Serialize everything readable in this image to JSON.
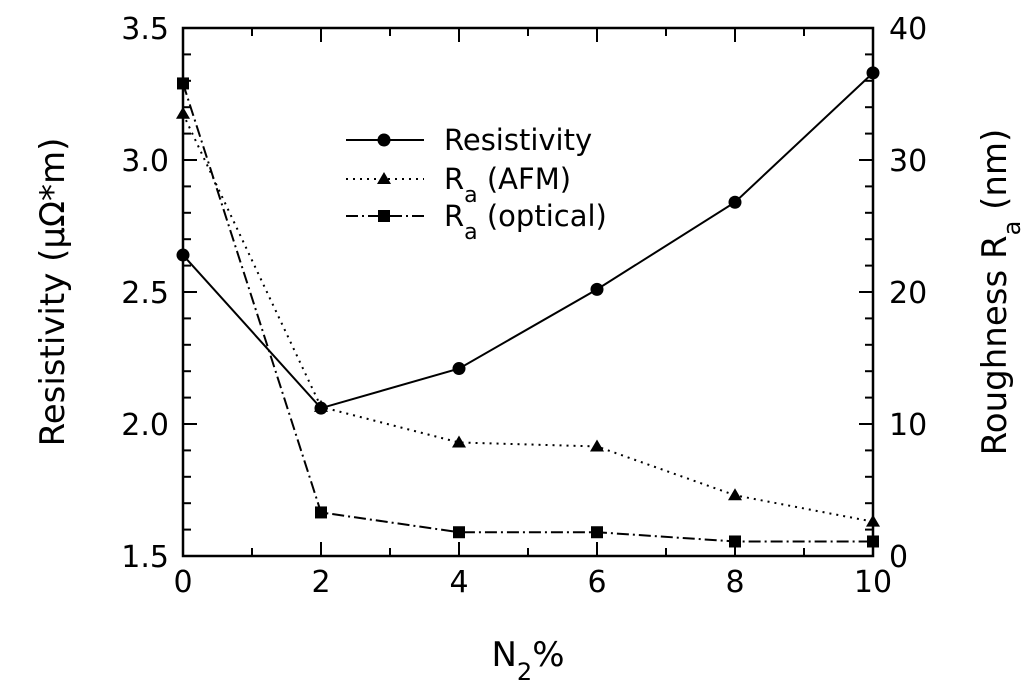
{
  "chart_data": {
    "type": "line",
    "x": [
      0,
      2,
      4,
      6,
      8,
      10
    ],
    "xlabel": "N",
    "xlabel_sub": "2",
    "xlabel_suffix": "%",
    "xlim": [
      0,
      10
    ],
    "x_ticks": [
      "0",
      "2",
      "4",
      "6",
      "8",
      "10"
    ],
    "ylabel_left": "Resistivity (μΩ*m)",
    "ylim_left": [
      1.5,
      3.5
    ],
    "y_ticks_left": [
      "1.5",
      "2.0",
      "2.5",
      "3.0",
      "3.5"
    ],
    "ylabel_right": "Roughness R",
    "ylabel_right_sub": "a",
    "ylabel_right_suffix": " (nm)",
    "ylim_right": [
      0,
      40
    ],
    "y_ticks_right": [
      "0",
      "10",
      "20",
      "30",
      "40"
    ],
    "legend_position": "upper-center",
    "series": [
      {
        "name": "Resistivity",
        "axis": "left",
        "marker": "circle",
        "line": "solid",
        "values": [
          2.64,
          2.06,
          2.21,
          2.51,
          2.84,
          3.33
        ]
      },
      {
        "name": "R",
        "name_sub": "a",
        "name_suffix": " (AFM)",
        "axis": "right",
        "marker": "triangle",
        "line": "dotted",
        "values": [
          33.5,
          11.3,
          8.6,
          8.3,
          4.6,
          2.6
        ]
      },
      {
        "name": "R",
        "name_sub": "a",
        "name_suffix": " (optical)",
        "axis": "right",
        "marker": "square",
        "line": "dashdot",
        "values": [
          35.8,
          3.3,
          1.8,
          1.8,
          1.1,
          1.1
        ]
      }
    ]
  }
}
